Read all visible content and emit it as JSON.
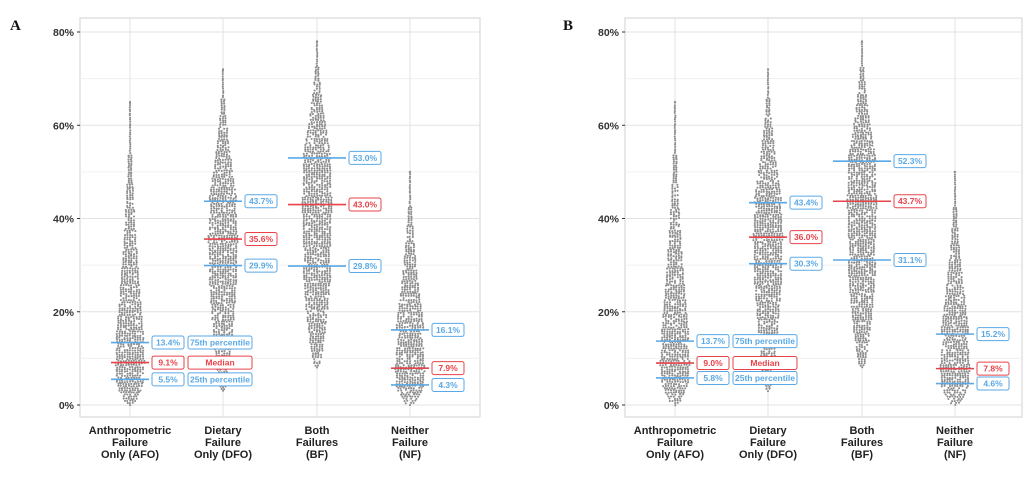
{
  "colors": {
    "quartile": "#5aa9e6",
    "median": "#e8434a",
    "dots": "#8c8c8c",
    "grid": "#e3e3e3",
    "axis": "#333333"
  },
  "chart_data": [
    {
      "type": "beeswarm",
      "panel": "A",
      "ylim": [
        0,
        80
      ],
      "yticks": [
        "0%",
        "20%",
        "40%",
        "60%",
        "80%"
      ],
      "categories": [
        "Anthropometric\nFailure\nOnly (AFO)",
        "Dietary\nFailure\nOnly (DFO)",
        "Both\nFailures\n(BF)",
        "Neither\nFailure\n(NF)"
      ],
      "p75": [
        13.4,
        43.7,
        53.0,
        16.1
      ],
      "median": [
        9.1,
        35.6,
        43.0,
        7.9
      ],
      "p25": [
        5.5,
        29.9,
        29.8,
        4.3
      ],
      "p75_labels": [
        "13.4%",
        "43.7%",
        "53.0%",
        "16.1%"
      ],
      "median_labels": [
        "9.1%",
        "35.6%",
        "43.0%",
        "7.9%"
      ],
      "p25_labels": [
        "5.5%",
        "29.9%",
        "29.8%",
        "4.3%"
      ],
      "range": [
        [
          0,
          65
        ],
        [
          3,
          72
        ],
        [
          8,
          78
        ],
        [
          0,
          50
        ]
      ],
      "legend": {
        "p75": "75th percentile",
        "median": "Median",
        "p25": "25th percentile"
      }
    },
    {
      "type": "beeswarm",
      "panel": "B",
      "ylim": [
        0,
        80
      ],
      "yticks": [
        "0%",
        "20%",
        "40%",
        "60%",
        "80%"
      ],
      "categories": [
        "Anthropometric\nFailure\nOnly (AFO)",
        "Dietary\nFailure\nOnly (DFO)",
        "Both\nFailures\n(BF)",
        "Neither\nFailure\n(NF)"
      ],
      "p75": [
        13.7,
        43.4,
        52.3,
        15.2
      ],
      "median": [
        9.0,
        36.0,
        43.7,
        7.8
      ],
      "p25": [
        5.8,
        30.3,
        31.1,
        4.6
      ],
      "p75_labels": [
        "13.7%",
        "43.4%",
        "52.3%",
        "15.2%"
      ],
      "median_labels": [
        "9.0%",
        "36.0%",
        "43.7%",
        "7.8%"
      ],
      "p25_labels": [
        "5.8%",
        "30.3%",
        "31.1%",
        "4.6%"
      ],
      "range": [
        [
          0,
          65
        ],
        [
          3,
          72
        ],
        [
          8,
          78
        ],
        [
          0,
          50
        ]
      ],
      "legend": {
        "p75": "75th percentile",
        "median": "Median",
        "p25": "25th percentile"
      }
    }
  ]
}
